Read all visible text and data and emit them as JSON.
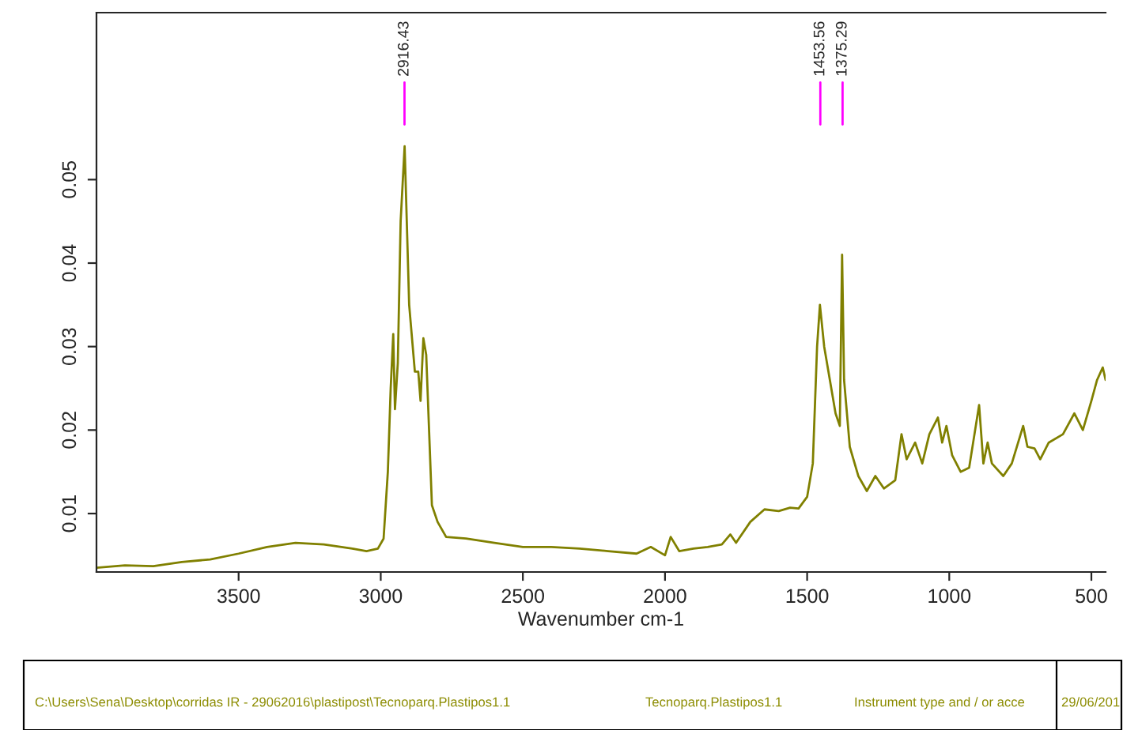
{
  "chart_data": {
    "type": "line",
    "xlabel": "Wavenumber cm-1",
    "x": [
      4000,
      3900,
      3800,
      3700,
      3600,
      3500,
      3400,
      3300,
      3200,
      3100,
      3050,
      3010,
      2990,
      2975,
      2965,
      2956,
      2950,
      2940,
      2930,
      2916,
      2900,
      2880,
      2868,
      2860,
      2850,
      2840,
      2830,
      2820,
      2800,
      2770,
      2700,
      2600,
      2500,
      2400,
      2300,
      2200,
      2100,
      2050,
      2000,
      1980,
      1950,
      1900,
      1850,
      1800,
      1770,
      1750,
      1700,
      1650,
      1600,
      1560,
      1530,
      1500,
      1480,
      1465,
      1455,
      1440,
      1420,
      1400,
      1385,
      1377,
      1370,
      1350,
      1320,
      1290,
      1260,
      1230,
      1190,
      1168,
      1150,
      1120,
      1095,
      1070,
      1040,
      1025,
      1010,
      990,
      960,
      930,
      895,
      880,
      865,
      850,
      810,
      780,
      740,
      725,
      700,
      680,
      650,
      600,
      560,
      530,
      500,
      480,
      460,
      450
    ],
    "series": [
      {
        "color": "#808000",
        "values": [
          0.0035,
          0.0038,
          0.0037,
          0.0042,
          0.0045,
          0.0052,
          0.006,
          0.0065,
          0.0063,
          0.0058,
          0.0055,
          0.0058,
          0.007,
          0.015,
          0.025,
          0.0315,
          0.0225,
          0.028,
          0.045,
          0.054,
          0.035,
          0.027,
          0.027,
          0.0235,
          0.031,
          0.029,
          0.02,
          0.011,
          0.009,
          0.0072,
          0.007,
          0.0065,
          0.006,
          0.006,
          0.0058,
          0.0055,
          0.0052,
          0.006,
          0.005,
          0.0072,
          0.0055,
          0.0058,
          0.006,
          0.0063,
          0.0075,
          0.0065,
          0.009,
          0.0105,
          0.0103,
          0.0107,
          0.0106,
          0.012,
          0.016,
          0.03,
          0.035,
          0.03,
          0.026,
          0.022,
          0.0205,
          0.041,
          0.026,
          0.018,
          0.0145,
          0.0127,
          0.0145,
          0.013,
          0.014,
          0.0195,
          0.0165,
          0.0185,
          0.016,
          0.0195,
          0.0215,
          0.0185,
          0.0205,
          0.017,
          0.015,
          0.0155,
          0.023,
          0.016,
          0.0185,
          0.016,
          0.0145,
          0.016,
          0.0205,
          0.018,
          0.0178,
          0.0165,
          0.0185,
          0.0195,
          0.022,
          0.02,
          0.0235,
          0.026,
          0.0275,
          0.026
        ]
      }
    ],
    "xlim": [
      4000,
      450
    ],
    "xticks": [
      3500,
      3000,
      2500,
      2000,
      1500,
      1000,
      500
    ],
    "ylim": [
      0.003,
      0.07
    ],
    "yticks": [
      0.01,
      0.02,
      0.03,
      0.04,
      0.05
    ],
    "grid": false,
    "annotations": [
      {
        "text": "2916.43",
        "x": 2916.43
      },
      {
        "text": "1453.56",
        "x": 1453.56
      },
      {
        "text": "1375.29",
        "x": 1375.29
      },
      "C:\\Users\\Sena\\Desktop\\corridas IR - 29062016\\plastipost\\Tecnoparq.Plastipos1.1",
      "Tecnoparq.Plastipos1.1",
      "Instrument type and / or acce",
      "29/06/201"
    ]
  }
}
